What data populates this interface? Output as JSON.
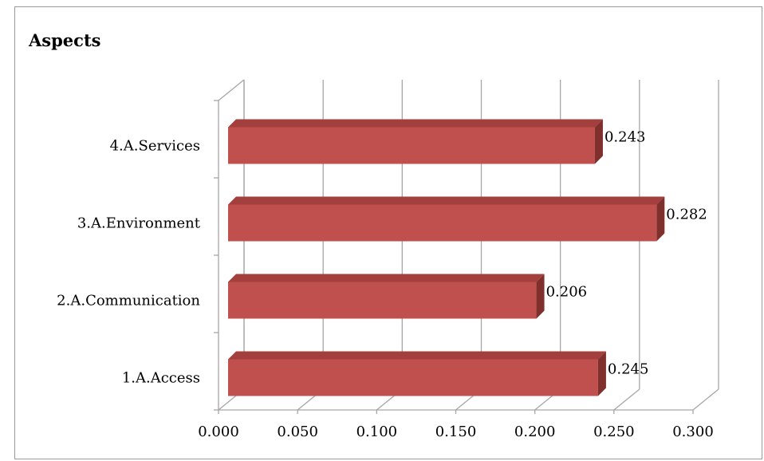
{
  "chart_data": {
    "type": "bar",
    "orientation": "horizontal",
    "style": "3d",
    "title": "Aspects",
    "categories": [
      "1.A.Access",
      "2.A.Communication",
      "3.A.Environment",
      "4.A.Services"
    ],
    "values": [
      0.245,
      0.206,
      0.282,
      0.243
    ],
    "data_labels": [
      "0.245",
      "0.206",
      "0.282",
      "0.243"
    ],
    "xlim": [
      0,
      0.3
    ],
    "x_ticks": [
      "0.000",
      "0.050",
      "0.100",
      "0.150",
      "0.200",
      "0.250",
      "0.300"
    ],
    "grid": true,
    "legend": "none",
    "colors": {
      "bar_front": "#c0504d",
      "bar_top": "#a33f3c",
      "bar_side": "#7f302d",
      "grid": "#a6a6a6"
    }
  }
}
